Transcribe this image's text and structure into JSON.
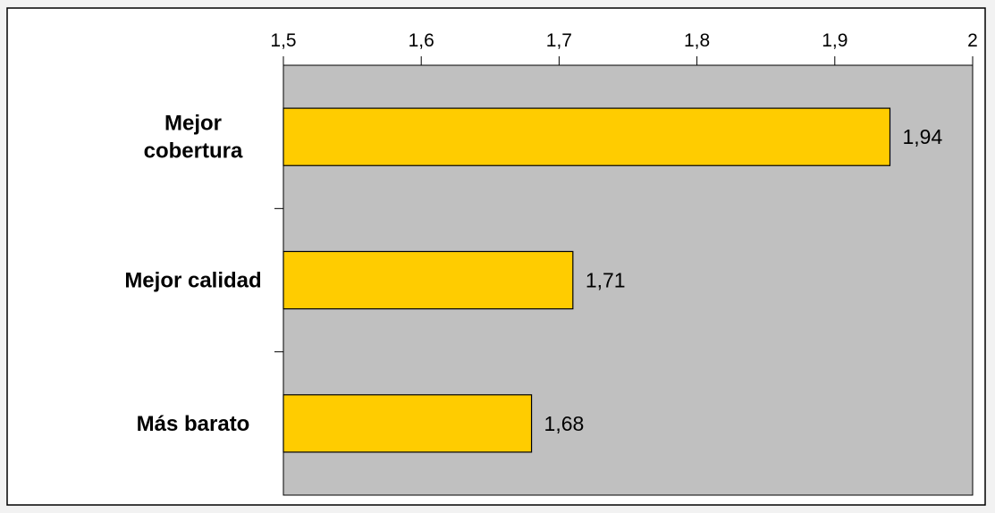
{
  "chart_data": {
    "type": "bar",
    "orientation": "horizontal",
    "categories": [
      "Mejor cobertura",
      "Mejor calidad",
      "Más barato"
    ],
    "category_label_lines": [
      [
        "Mejor",
        "cobertura"
      ],
      [
        "Mejor calidad"
      ],
      [
        "Más barato"
      ]
    ],
    "values": [
      1.94,
      1.71,
      1.68
    ],
    "value_labels": [
      "1,94",
      "1,71",
      "1,68"
    ],
    "xlim": [
      1.5,
      2.0
    ],
    "xticks": [
      1.5,
      1.6,
      1.7,
      1.8,
      1.9,
      2.0
    ],
    "xtick_labels": [
      "1,5",
      "1,6",
      "1,7",
      "1,8",
      "1,9",
      "2"
    ],
    "x_axis_position": "top",
    "title": "",
    "xlabel": "",
    "ylabel": "",
    "grid": false,
    "legend": "none",
    "colors": {
      "bar_fill": "#FFCC00",
      "plot_background": "#C0C0C0",
      "chart_background": "#FFFFFF",
      "page_background": "#F2F2F2",
      "axis": "#000000",
      "text": "#000000"
    }
  }
}
